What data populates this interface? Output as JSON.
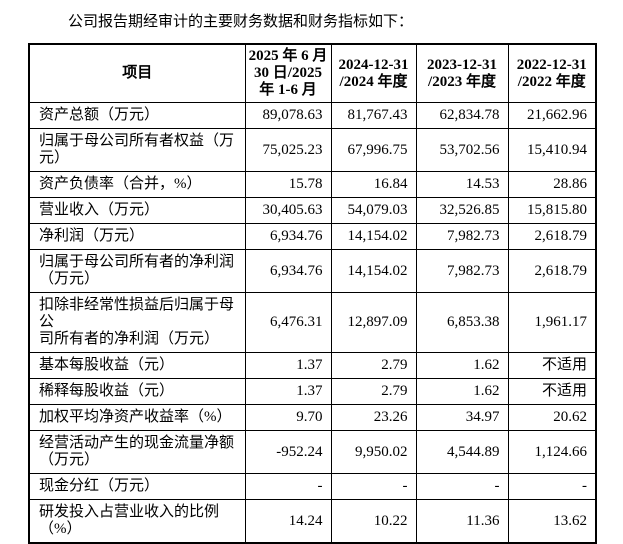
{
  "document": {
    "intro": "公司报告期经审计的主要财务数据和财务指标如下："
  },
  "table": {
    "columns": [
      "项目",
      "2025 年 6 月\n30 日/2025\n年 1-6 月",
      "2024-12-31\n/2024 年度",
      "2023-12-31\n/2023 年度",
      "2022-12-31\n/2022 年度"
    ],
    "rows": [
      {
        "label": "资产总额（万元）",
        "values": [
          "89,078.63",
          "81,767.43",
          "62,834.78",
          "21,662.96"
        ],
        "lines": 1
      },
      {
        "label": "归属于母公司所有者权益（万元）",
        "values": [
          "75,025.23",
          "67,996.75",
          "53,702.56",
          "15,410.94"
        ],
        "lines": 1
      },
      {
        "label": "资产负债率（合并，%）",
        "values": [
          "15.78",
          "16.84",
          "14.53",
          "28.86"
        ],
        "lines": 1
      },
      {
        "label": "营业收入（万元）",
        "values": [
          "30,405.63",
          "54,079.03",
          "32,526.85",
          "15,815.80"
        ],
        "lines": 1
      },
      {
        "label": "净利润（万元）",
        "values": [
          "6,934.76",
          "14,154.02",
          "7,982.73",
          "2,618.79"
        ],
        "lines": 1
      },
      {
        "label": "归属于母公司所有者的净利润\n（万元）",
        "values": [
          "6,934.76",
          "14,154.02",
          "7,982.73",
          "2,618.79"
        ],
        "lines": 2
      },
      {
        "label": "扣除非经常性损益后归属于母公\n司所有者的净利润（万元）",
        "values": [
          "6,476.31",
          "12,897.09",
          "6,853.38",
          "1,961.17"
        ],
        "lines": 2
      },
      {
        "label": "基本每股收益（元）",
        "values": [
          "1.37",
          "2.79",
          "1.62",
          "不适用"
        ],
        "lines": 1
      },
      {
        "label": "稀释每股收益（元）",
        "values": [
          "1.37",
          "2.79",
          "1.62",
          "不适用"
        ],
        "lines": 1
      },
      {
        "label": "加权平均净资产收益率（%）",
        "values": [
          "9.70",
          "23.26",
          "34.97",
          "20.62"
        ],
        "lines": 1
      },
      {
        "label": "经营活动产生的现金流量净额\n（万元）",
        "values": [
          "-952.24",
          "9,950.02",
          "4,544.89",
          "1,124.66"
        ],
        "lines": 2
      },
      {
        "label": "现金分红（万元）",
        "values": [
          "-",
          "-",
          "-",
          "-"
        ],
        "lines": 1
      },
      {
        "label": "研发投入占营业收入的比例（%）",
        "values": [
          "14.24",
          "10.22",
          "11.36",
          "13.62"
        ],
        "lines": 1
      }
    ]
  }
}
